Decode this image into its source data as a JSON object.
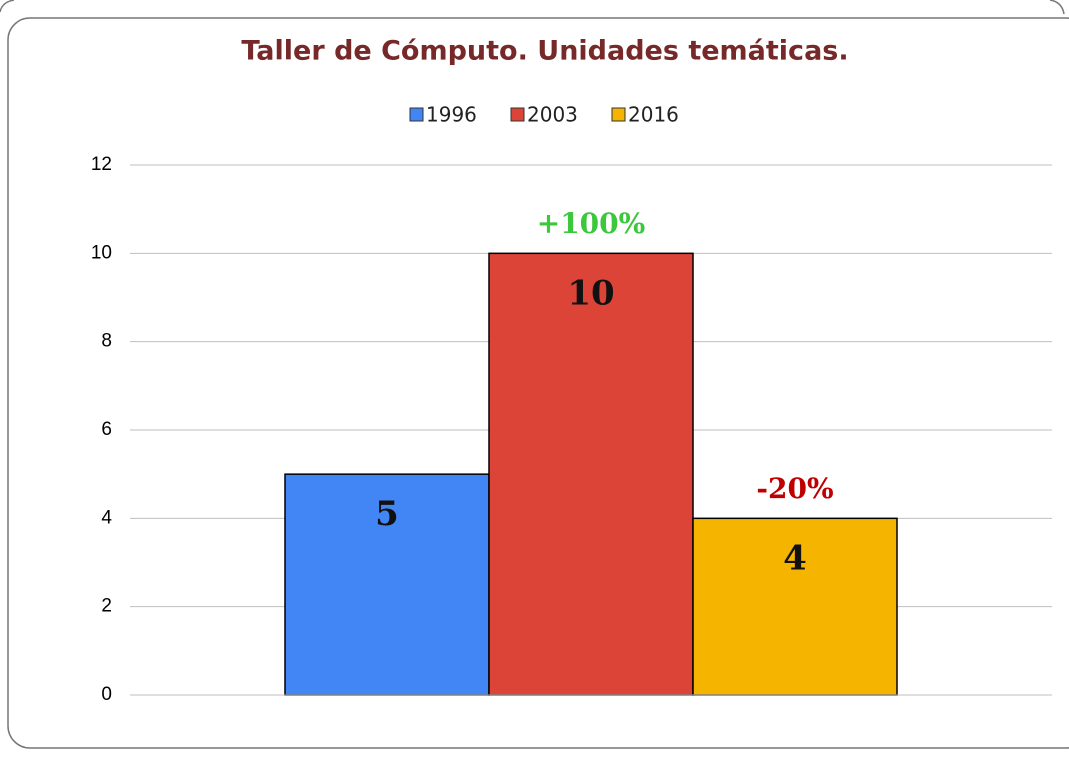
{
  "chart_data": {
    "type": "bar",
    "title": "Taller de Cómputo. Unidades temáticas.",
    "categories": [
      null
    ],
    "series": [
      {
        "name": "1996",
        "color": "#4285f4",
        "values": [
          5
        ]
      },
      {
        "name": "2003",
        "color": "#db4437",
        "values": [
          10
        ],
        "annotation": "+100%",
        "annotation_color": "#3cc83c"
      },
      {
        "name": "2016",
        "color": "#f4b400",
        "values": [
          4
        ],
        "annotation": "-20%",
        "annotation_color": "#c00000"
      }
    ],
    "ylim": [
      0,
      12
    ],
    "yticks": [
      0,
      2,
      4,
      6,
      8,
      10,
      12
    ],
    "grid": true,
    "legend": "top"
  }
}
